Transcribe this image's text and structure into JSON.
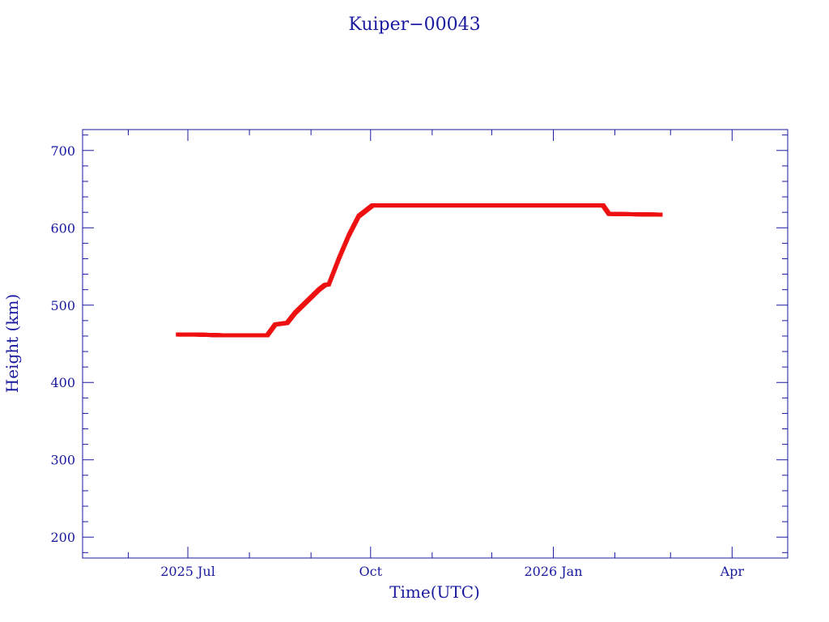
{
  "chart_data": {
    "type": "scatter",
    "title": "Kuiper−00043",
    "xlabel": "Time(UTC)",
    "ylabel": "Height (km)",
    "xlim": [
      "2025-05-09",
      "2026-04-29"
    ],
    "ylim": [
      173,
      727
    ],
    "x_ticks": [
      {
        "date": "2025-07-01",
        "label": "2025 Jul"
      },
      {
        "date": "2025-10-01",
        "label": "Oct"
      },
      {
        "date": "2026-01-01",
        "label": "2026 Jan"
      },
      {
        "date": "2026-04-01",
        "label": "Apr"
      }
    ],
    "y_ticks": [
      200,
      300,
      400,
      500,
      600,
      700
    ],
    "grid": false,
    "marker_color": "#ee1111",
    "axis_color": "#1a1aa0",
    "series": [
      {
        "x": [
          "2025-06-26",
          "2025-07-05",
          "2025-07-18",
          "2025-08-01",
          "2025-08-10",
          "2025-08-14",
          "2025-08-20",
          "2025-08-24",
          "2025-08-30",
          "2025-09-05",
          "2025-09-08",
          "2025-09-10",
          "2025-09-15",
          "2025-09-20",
          "2025-09-25",
          "2025-10-02",
          "2025-10-05",
          "2025-11-01",
          "2025-12-01",
          "2026-01-01",
          "2026-01-26",
          "2026-01-29",
          "2026-02-24"
        ],
        "y": [
          462,
          462,
          461,
          461,
          461,
          475,
          477,
          490,
          505,
          520,
          526,
          527,
          560,
          590,
          615,
          629,
          629,
          629,
          629,
          629,
          629,
          618,
          617
        ]
      }
    ]
  }
}
